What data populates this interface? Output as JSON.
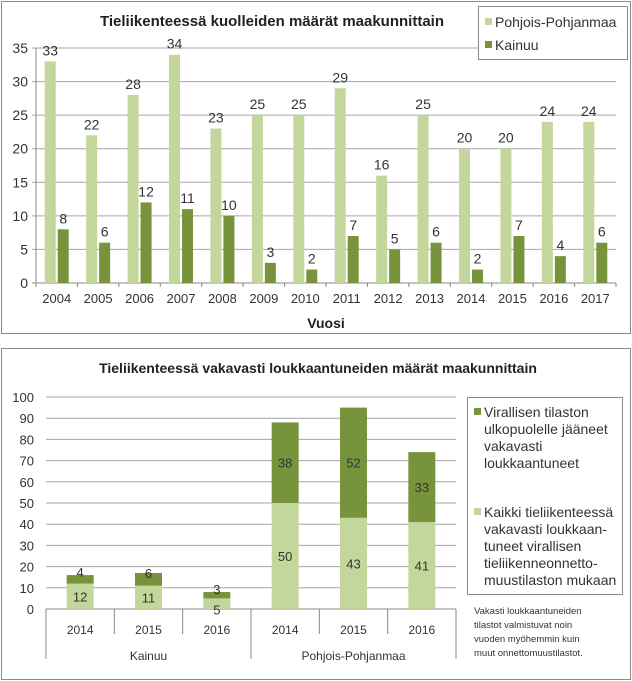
{
  "colors": {
    "light_green": "#c3d69b",
    "dark_green": "#77933c",
    "grid": "#a6a6a6",
    "axis": "#888888"
  },
  "chart_data": [
    {
      "type": "bar",
      "title": "Tieliikenteessä kuolleiden määrät maakunnittain",
      "xlabel": "Vuosi",
      "ylabel": "",
      "ylim": [
        0,
        35
      ],
      "yticks": [
        0,
        5,
        10,
        15,
        20,
        25,
        30,
        35
      ],
      "grid": true,
      "legend_position": "top-right",
      "categories": [
        "2004",
        "2005",
        "2006",
        "2007",
        "2008",
        "2009",
        "2010",
        "2011",
        "2012",
        "2013",
        "2014",
        "2015",
        "2016",
        "2017"
      ],
      "series": [
        {
          "name": "Pohjois-Pohjanmaa",
          "color": "#c3d69b",
          "values": [
            33,
            22,
            28,
            34,
            23,
            25,
            25,
            29,
            16,
            25,
            20,
            20,
            24,
            24
          ]
        },
        {
          "name": "Kainuu",
          "color": "#77933c",
          "values": [
            8,
            6,
            12,
            11,
            10,
            3,
            2,
            7,
            5,
            6,
            2,
            7,
            4,
            6
          ]
        }
      ]
    },
    {
      "type": "bar",
      "stacked": true,
      "title": "Tieliikenteessä vakavasti loukkaantuneiden määrät maakunnittain",
      "xlabel": "",
      "ylabel": "",
      "ylim": [
        0,
        100
      ],
      "yticks": [
        0,
        10,
        20,
        30,
        40,
        50,
        60,
        70,
        80,
        90,
        100
      ],
      "grid": true,
      "legend_position": "right",
      "categories": [
        "2014",
        "2015",
        "2016",
        "2014",
        "2015",
        "2016"
      ],
      "groups": [
        {
          "name": "Kainuu",
          "categories": [
            "2014",
            "2015",
            "2016"
          ]
        },
        {
          "name": "Pohjois-Pohjanmaa",
          "categories": [
            "2014",
            "2015",
            "2016"
          ]
        }
      ],
      "series": [
        {
          "name": "Kaikki tieliikenteessä vakavasti loukkaan-tuneet virallisen tieliikenneonnetto-muustilaston mukaan",
          "legend_lines": [
            "Kaikki tieliikenteessä",
            "vakavasti loukkaan-",
            "tuneet virallisen",
            "tieliikenneonnetto-",
            "muustilaston mukaan"
          ],
          "color": "#c3d69b",
          "values": [
            12,
            11,
            5,
            50,
            43,
            41
          ]
        },
        {
          "name": "Virallisen tilaston ulkopuolelle jääneet vakavasti loukkaantuneet",
          "legend_lines": [
            "Virallisen tilaston",
            "ulkopuolelle jääneet",
            "vakavasti",
            "loukkaantuneet"
          ],
          "color": "#77933c",
          "values": [
            4,
            6,
            3,
            38,
            52,
            33
          ]
        }
      ],
      "note_lines": [
        "Vakasti loukkaantuneiden",
        "tilastot valmistuvat noin",
        "vuoden myöhemmin kuin",
        "muut onnettomuustilastot."
      ]
    }
  ]
}
